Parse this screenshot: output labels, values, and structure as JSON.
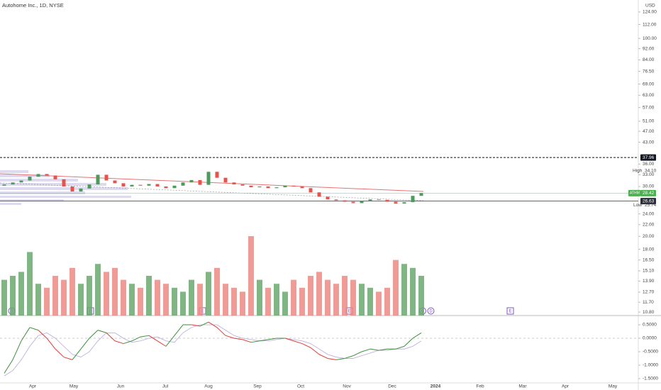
{
  "header": {
    "title": "Autohome Inc., 1D, NYSE",
    "currency": "USD"
  },
  "chart_data": [
    {
      "type": "candlestick",
      "open": [
        30.2,
        30.5,
        31.0,
        31.5,
        32.5,
        33.2,
        32.8,
        31.8,
        30.0,
        28.8,
        29.5,
        30.5,
        33.0,
        31.5,
        30.8,
        30.0,
        30.4,
        30.2,
        30.6,
        30.0,
        29.6,
        30.2,
        31.0,
        31.6,
        30.4,
        33.8,
        32.2,
        31.0,
        30.5,
        30.2,
        29.8,
        30.0,
        29.6,
        29.8,
        30.2,
        30.0,
        29.6,
        28.6,
        27.6,
        27.0,
        26.8,
        26.5,
        26.2,
        26.6,
        27.0,
        26.9,
        26.5,
        26.1,
        26.4,
        27.8
      ],
      "high": {
        "value": 34.1,
        "label": "34.10"
      },
      "low": {
        "value": 25.74,
        "label": "25.74"
      },
      "close": [
        30.5,
        31.0,
        31.5,
        32.5,
        33.2,
        32.8,
        31.8,
        30.0,
        28.8,
        29.5,
        30.5,
        33.0,
        31.5,
        30.8,
        30.0,
        30.4,
        30.2,
        30.6,
        30.0,
        29.6,
        30.2,
        31.0,
        31.6,
        30.4,
        33.8,
        32.2,
        31.0,
        30.5,
        30.2,
        29.8,
        30.0,
        29.6,
        29.8,
        30.2,
        30.0,
        29.6,
        28.6,
        27.6,
        27.0,
        26.8,
        26.5,
        26.2,
        26.6,
        27.0,
        26.9,
        26.5,
        26.1,
        26.4,
        27.8,
        28.42
      ],
      "up_color": "#4c9a5c",
      "down_color": "#e5534b",
      "log_scale": true,
      "ylim": [
        10.5,
        136.7
      ],
      "yticks": [
        {
          "value": 124,
          "label": "124.00"
        },
        {
          "value": 112,
          "label": "112.00"
        },
        {
          "value": 100,
          "label": "100.00"
        },
        {
          "value": 92,
          "label": "92.00"
        },
        {
          "value": 84,
          "label": "84.00"
        },
        {
          "value": 76.5,
          "label": "76.50"
        },
        {
          "value": 69,
          "label": "69.00"
        },
        {
          "value": 63,
          "label": "63.00"
        },
        {
          "value": 57,
          "label": "57.00"
        },
        {
          "value": 51,
          "label": "51.00"
        },
        {
          "value": 47,
          "label": "47.00"
        },
        {
          "value": 43,
          "label": "43.00"
        },
        {
          "value": 36,
          "label": "36.00"
        },
        {
          "value": 33,
          "label": "33.00"
        },
        {
          "value": 30,
          "label": "30.00"
        },
        {
          "value": 24,
          "label": "24.00"
        },
        {
          "value": 22,
          "label": "22.00"
        },
        {
          "value": 20,
          "label": "20.00"
        },
        {
          "value": 18,
          "label": "18.00"
        },
        {
          "value": 16.5,
          "label": "16.50"
        },
        {
          "value": 15.1,
          "label": "15.10"
        },
        {
          "value": 13.9,
          "label": "13.90"
        },
        {
          "value": 12.7,
          "label": "12.70"
        },
        {
          "value": 11.7,
          "label": "11.70"
        },
        {
          "value": 10.8,
          "label": "10.80"
        }
      ],
      "alert": 37.96,
      "high_label": "High",
      "low_label": "Low",
      "symbol": "ATHM",
      "last": 28.42,
      "level": 26.63
    },
    {
      "type": "volume",
      "values": [
        0.45,
        0.5,
        0.55,
        0.8,
        0.4,
        0.35,
        0.5,
        0.45,
        0.6,
        0.4,
        0.5,
        0.65,
        0.55,
        0.6,
        0.45,
        0.4,
        0.35,
        0.5,
        0.45,
        0.4,
        0.35,
        0.3,
        0.45,
        0.4,
        0.55,
        0.6,
        0.4,
        0.35,
        0.3,
        1.0,
        0.45,
        0.35,
        0.4,
        0.3,
        0.45,
        0.35,
        0.5,
        0.55,
        0.45,
        0.4,
        0.5,
        0.45,
        0.4,
        0.35,
        0.3,
        0.35,
        0.7,
        0.65,
        0.6,
        0.5
      ],
      "up_color": "#6aa86f",
      "down_color": "#ef8a84"
    },
    {
      "type": "line",
      "series": [
        {
          "color": "#3a8f3a",
          "down_color": "#e53935",
          "values": [
            -1.3,
            -0.8,
            -0.1,
            0.4,
            0.3,
            0.0,
            -0.4,
            -0.7,
            -0.8,
            -0.4,
            0.0,
            0.3,
            0.2,
            -0.1,
            -0.2,
            -0.1,
            0.05,
            0.1,
            -0.1,
            -0.3,
            0.1,
            0.5,
            0.5,
            0.45,
            0.6,
            0.4,
            0.1,
            0.0,
            -0.05,
            -0.15,
            -0.1,
            -0.05,
            0.0,
            0.0,
            -0.1,
            -0.2,
            -0.35,
            -0.6,
            -0.75,
            -0.8,
            -0.75,
            -0.65,
            -0.5,
            -0.4,
            -0.45,
            -0.4,
            -0.4,
            -0.3,
            0.0,
            0.2
          ]
        },
        {
          "color": "#b7a8d8",
          "values": [
            -1.4,
            -1.2,
            -0.8,
            -0.3,
            0.1,
            0.2,
            0.0,
            -0.3,
            -0.6,
            -0.7,
            -0.5,
            -0.1,
            0.2,
            0.2,
            0.0,
            -0.15,
            -0.1,
            0.0,
            0.05,
            -0.1,
            -0.15,
            0.2,
            0.4,
            0.5,
            0.5,
            0.5,
            0.3,
            0.1,
            0.0,
            -0.05,
            -0.1,
            -0.1,
            -0.05,
            0.0,
            -0.05,
            -0.1,
            -0.2,
            -0.4,
            -0.6,
            -0.7,
            -0.75,
            -0.75,
            -0.65,
            -0.55,
            -0.45,
            -0.45,
            -0.4,
            -0.4,
            -0.3,
            -0.1
          ]
        }
      ],
      "ylim": [
        -1.66,
        0.79
      ],
      "yticks": [
        {
          "value": 0.5,
          "label": "0.5000"
        },
        {
          "value": 0,
          "label": "0.0000"
        },
        {
          "value": -0.5,
          "label": "-0.5000"
        },
        {
          "value": -1,
          "label": "-1.0000"
        },
        {
          "value": -1.5,
          "label": "-1.5000"
        }
      ]
    }
  ],
  "time_axis": {
    "labels": [
      "Apr",
      "May",
      "Jun",
      "Jul",
      "Aug",
      "Sep",
      "Oct",
      "Nov",
      "Dec",
      "2024",
      "Feb",
      "Mar",
      "Apr",
      "May"
    ]
  },
  "events": [
    "D",
    "E",
    "E",
    "E",
    "D",
    "E"
  ]
}
